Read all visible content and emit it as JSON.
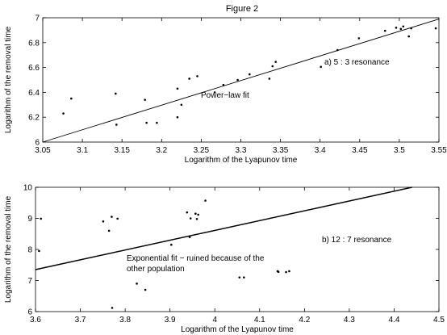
{
  "figure_title": "Figure 2",
  "chart_data": [
    {
      "type": "scatter",
      "title": "",
      "xlabel": "Logarithm of the Lyapunov time",
      "ylabel": "Logarithm of the removal time",
      "xlim": [
        3.05,
        3.55
      ],
      "ylim": [
        6,
        7
      ],
      "xticks": [
        "3.05",
        "3.1",
        "3.15",
        "3.2",
        "3.25",
        "3.3",
        "3.35",
        "3.4",
        "3.45",
        "3.5",
        "3.55"
      ],
      "yticks": [
        "6",
        "6.2",
        "6.4",
        "6.6",
        "6.8",
        "7"
      ],
      "annotations": [
        "a)  5 : 3 resonance",
        "Power−law fit"
      ],
      "grid": false,
      "fit_line": [
        [
          3.05,
          6.0
        ],
        [
          3.55,
          6.99
        ]
      ],
      "points": [
        [
          3.076,
          6.23
        ],
        [
          3.086,
          6.35
        ],
        [
          3.142,
          6.39
        ],
        [
          3.143,
          6.14
        ],
        [
          3.179,
          6.34
        ],
        [
          3.181,
          6.155
        ],
        [
          3.194,
          6.155
        ],
        [
          3.22,
          6.43
        ],
        [
          3.22,
          6.2
        ],
        [
          3.225,
          6.3
        ],
        [
          3.235,
          6.51
        ],
        [
          3.245,
          6.53
        ],
        [
          3.267,
          6.4
        ],
        [
          3.278,
          6.46
        ],
        [
          3.296,
          6.5
        ],
        [
          3.311,
          6.545
        ],
        [
          3.336,
          6.51
        ],
        [
          3.34,
          6.61
        ],
        [
          3.344,
          6.645
        ],
        [
          3.401,
          6.605
        ],
        [
          3.422,
          6.74
        ],
        [
          3.449,
          6.835
        ],
        [
          3.482,
          6.895
        ],
        [
          3.496,
          6.92
        ],
        [
          3.502,
          6.91
        ],
        [
          3.505,
          6.93
        ],
        [
          3.512,
          6.85
        ],
        [
          3.515,
          6.915
        ],
        [
          3.546,
          6.915
        ]
      ]
    },
    {
      "type": "scatter",
      "title": "",
      "xlabel": "Logarithm of the Lyapunov time",
      "ylabel": "Logarithm of the removal time",
      "xlim": [
        3.6,
        4.5
      ],
      "ylim": [
        6,
        10
      ],
      "xticks": [
        "3.6",
        "3.7",
        "3.8",
        "3.9",
        "4",
        "4.1",
        "4.2",
        "4.3",
        "4.4",
        "4.5"
      ],
      "yticks": [
        "6",
        "7",
        "8",
        "9",
        "10"
      ],
      "annotations": [
        "b)  12 : 7 resonance",
        "Exponential fit − ruined because of the",
        "other population"
      ],
      "grid": false,
      "fit_line": [
        [
          3.6,
          7.35
        ],
        [
          4.44,
          10.0
        ]
      ],
      "points": [
        [
          3.608,
          7.95
        ],
        [
          3.612,
          8.99
        ],
        [
          3.751,
          8.9
        ],
        [
          3.764,
          8.6
        ],
        [
          3.77,
          9.05
        ],
        [
          3.771,
          6.12
        ],
        [
          3.783,
          8.99
        ],
        [
          3.826,
          6.9
        ],
        [
          3.845,
          6.7
        ],
        [
          3.903,
          8.15
        ],
        [
          3.938,
          9.19
        ],
        [
          3.944,
          8.4
        ],
        [
          3.946,
          9.0
        ],
        [
          3.957,
          9.15
        ],
        [
          3.96,
          8.98
        ],
        [
          3.963,
          9.12
        ],
        [
          3.979,
          9.57
        ],
        [
          4.055,
          7.1
        ],
        [
          4.065,
          7.1
        ],
        [
          4.14,
          7.3
        ],
        [
          4.142,
          7.28
        ],
        [
          4.159,
          7.27
        ],
        [
          4.166,
          7.3
        ]
      ]
    }
  ]
}
